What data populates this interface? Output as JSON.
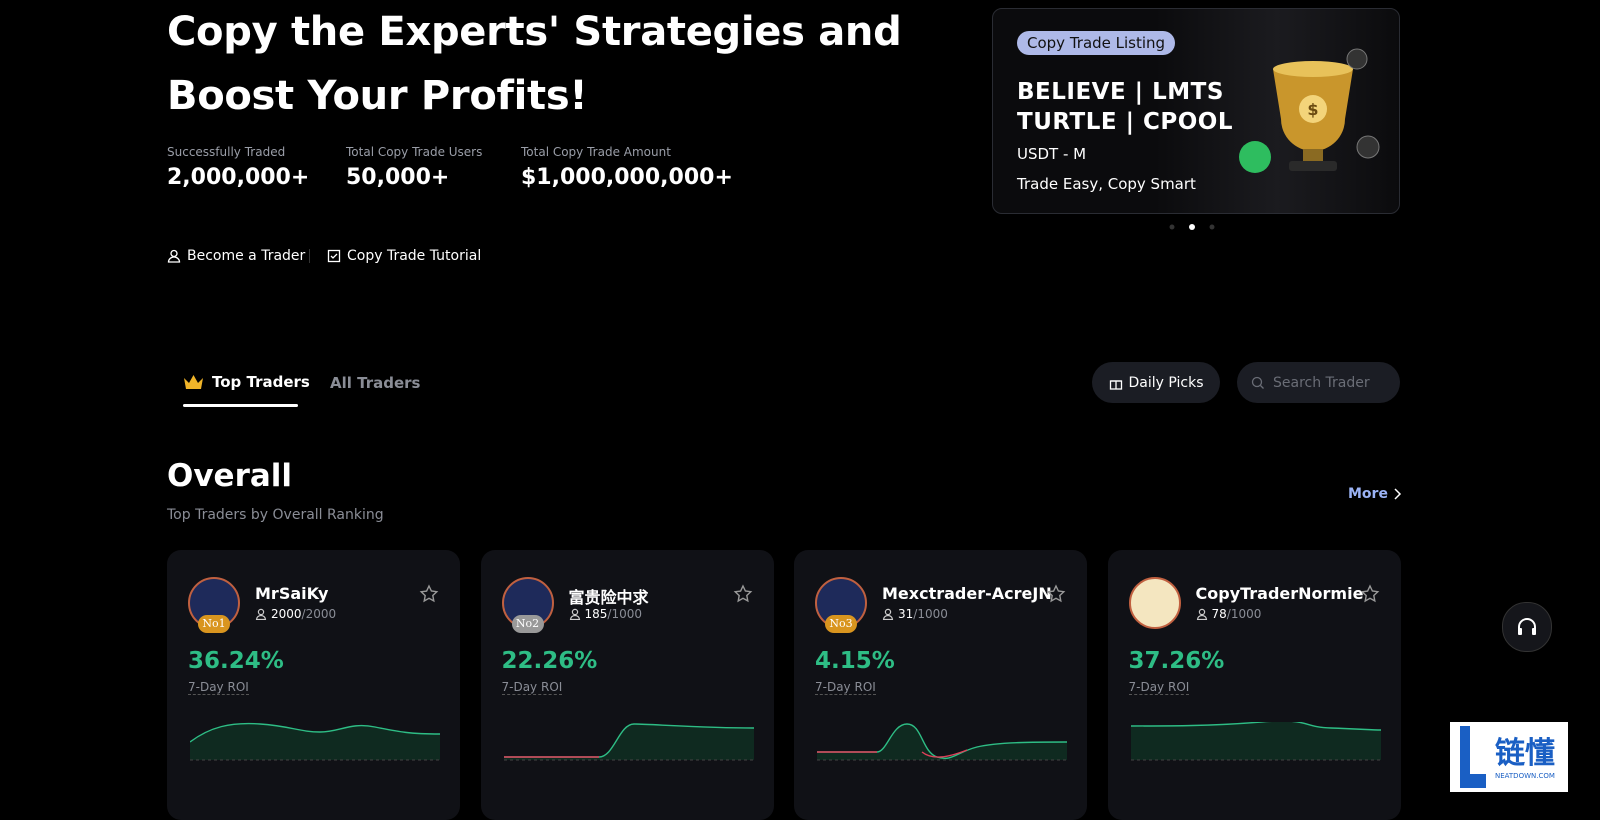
{
  "hero": {
    "title": "Copy the Experts' Strategies and Boost Your Profits!",
    "stats": [
      {
        "label": "Successfully Traded",
        "value": "2,000,000+"
      },
      {
        "label": "Total Copy Trade Users",
        "value": "50,000+"
      },
      {
        "label": "Total Copy Trade Amount",
        "value": "$1,000,000,000+"
      }
    ],
    "links": [
      "Become a Trader",
      "Copy Trade Tutorial"
    ]
  },
  "banner": {
    "tag": "Copy Trade Listing",
    "line1": "BELIEVE | LMTS",
    "line2": "TURTLE | CPOOL",
    "market": "USDT - M",
    "slogan": "Trade Easy, Copy Smart"
  },
  "tabs": [
    "Top Traders",
    "All Traders"
  ],
  "actions": {
    "daily": "Daily Picks",
    "search": "Search Trader"
  },
  "section": {
    "title": "Overall",
    "subtitle": "Top Traders by Overall Ranking",
    "more": "More"
  },
  "cards": [
    {
      "name": "MrSaiKy",
      "rank": "No1",
      "followers": "2000",
      "capacity": "/2000",
      "roi": "36.24%",
      "roi_label": "7-Day ROI"
    },
    {
      "name": "富贵险中求",
      "rank": "No2",
      "followers": "185",
      "capacity": "/1000",
      "roi": "22.26%",
      "roi_label": "7-Day ROI"
    },
    {
      "name": "Mexctrader-AcreJN",
      "rank": "No3",
      "followers": "31",
      "capacity": "/1000",
      "roi": "4.15%",
      "roi_label": "7-Day ROI"
    },
    {
      "name": "CopyTraderNormie",
      "followers": "78",
      "capacity": "/1000",
      "roi": "37.26%",
      "roi_label": "7-Day ROI"
    }
  ],
  "watermark": {
    "text": "链懂",
    "site": "NEATDOWN.COM"
  }
}
